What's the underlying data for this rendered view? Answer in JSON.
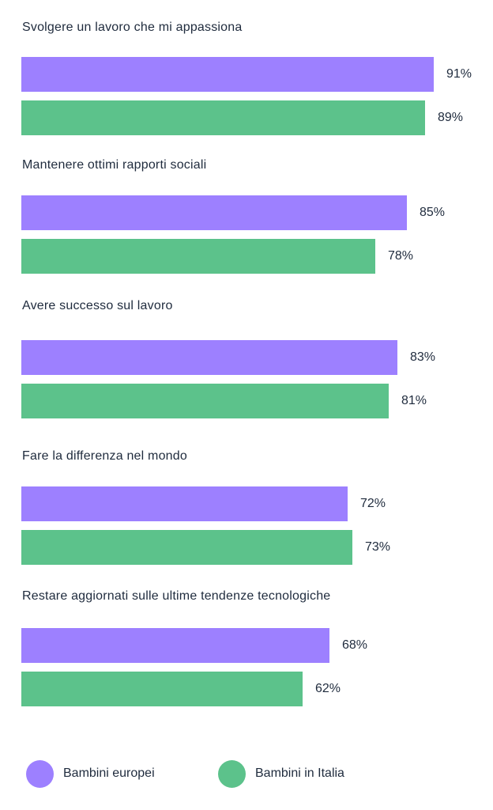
{
  "chart_data": {
    "type": "bar",
    "orientation": "horizontal",
    "categories": [
      "Svolgere un lavoro che mi appassiona",
      "Mantenere ottimi rapporti sociali",
      "Avere successo sul lavoro",
      "Fare la differenza nel mondo",
      "Restare aggiornati sulle ultime tendenze tecnologiche"
    ],
    "series": [
      {
        "name": "Bambini europei",
        "color": "#9d80ff",
        "values": [
          91,
          85,
          83,
          72,
          68
        ],
        "labels": [
          "91%",
          "85%",
          "83%",
          "72%",
          "68%"
        ]
      },
      {
        "name": "Bambini in Italia",
        "color": "#5cc28b",
        "values": [
          89,
          78,
          81,
          73,
          62
        ],
        "labels": [
          "89%",
          "78%",
          "81%",
          "73%",
          "62%"
        ]
      }
    ],
    "xlim": [
      0,
      100
    ],
    "value_unit": "%",
    "grid": false,
    "legend_position": "bottom-left"
  }
}
